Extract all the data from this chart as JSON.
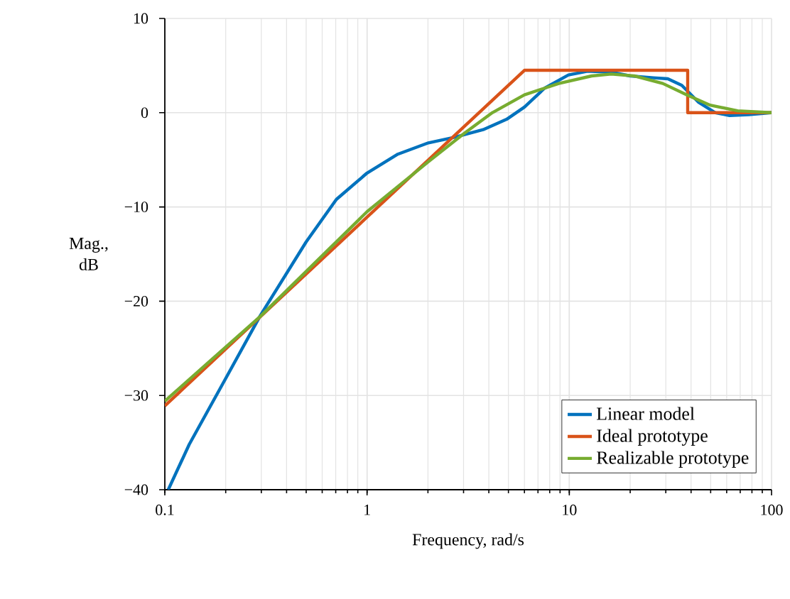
{
  "chart_data": {
    "type": "line",
    "xlabel": "Frequency, rad/s",
    "ylabel": "Mag., dB",
    "log": "x",
    "grid": true,
    "legend": "bottom right",
    "marker": "none",
    "line_style": "solid",
    "xlim": [
      0.1,
      100
    ],
    "ylim": [
      -40,
      10
    ],
    "xticks": [
      0.1,
      1,
      10,
      100
    ],
    "yticks": [
      {
        "value": -40,
        "label": "−40"
      },
      {
        "value": -30,
        "label": "−30"
      },
      {
        "value": -20,
        "label": "−20"
      },
      {
        "value": -10,
        "label": "−10"
      },
      0,
      10
    ],
    "series": [
      {
        "name": "Linear model",
        "color": "#0072bd",
        "x": [
          0.104,
          0.132,
          0.2,
          0.297,
          0.5,
          0.705,
          1,
          1.42,
          2.01,
          2.71,
          3.75,
          4.9,
          6.0,
          7.55,
          9.9,
          12.3,
          16.1,
          20,
          26.1,
          30.7,
          36,
          43.6,
          52.7,
          62,
          77,
          100
        ],
        "values": [
          -40,
          -35.2,
          -28.2,
          -21.5,
          -13.7,
          -9.2,
          -6.4,
          -4.4,
          -3.2,
          -2.6,
          -1.8,
          -0.7,
          0.6,
          2.6,
          4.0,
          4.4,
          4.3,
          3.9,
          3.7,
          3.6,
          2.9,
          1.1,
          0,
          -0.3,
          -0.2,
          0
        ]
      },
      {
        "name": "Ideal prototype",
        "color": "#d95319",
        "x": [
          0.1,
          6,
          38.5,
          38.5,
          100
        ],
        "values": [
          -31.1,
          4.5,
          4.5,
          0,
          0
        ]
      },
      {
        "name": "Realizable prototype",
        "color": "#77ac30",
        "x": [
          0.1,
          0.297,
          1,
          2.01,
          3.02,
          4.16,
          6.0,
          8.87,
          12.9,
          16.1,
          21,
          29,
          38,
          49.7,
          68,
          100
        ],
        "values": [
          -30.6,
          -21.6,
          -10.5,
          -5.2,
          -2.2,
          0,
          1.9,
          3.1,
          3.9,
          4.1,
          3.9,
          3.1,
          1.9,
          0.8,
          0.2,
          0
        ]
      }
    ]
  }
}
